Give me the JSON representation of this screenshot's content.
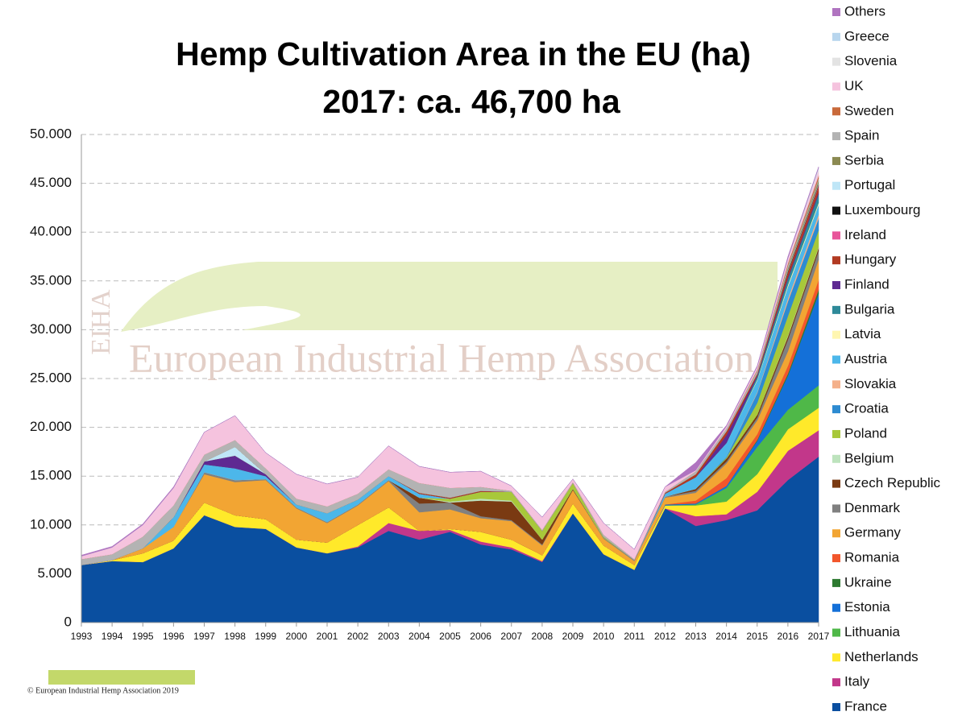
{
  "chart_data": {
    "type": "stacked-area",
    "title": "Hemp Cultivation Area in the EU (ha)",
    "subtitle": "2017: ca. 46,700 ha",
    "watermark": {
      "logo": "EIHA",
      "text": "European Industrial Hemp Association"
    },
    "footer": "© European Industrial Hemp Association 2019",
    "categories": [
      "1993",
      "1994",
      "1995",
      "1996",
      "1997",
      "1998",
      "1999",
      "2000",
      "2001",
      "2002",
      "2003",
      "2004",
      "2005",
      "2006",
      "2007",
      "2008",
      "2009",
      "2010",
      "2011",
      "2012",
      "2013",
      "2014",
      "2015",
      "2016",
      "2017"
    ],
    "ylim": [
      0,
      50000
    ],
    "yticks": [
      0,
      {
        "value": 5000,
        "label": "5.000"
      },
      {
        "value": 10000,
        "label": "10.000"
      },
      {
        "value": 15000,
        "label": "15.000"
      },
      {
        "value": 20000,
        "label": "20.000"
      },
      {
        "value": 25000,
        "label": "25.000"
      },
      {
        "value": 30000,
        "label": "30.000"
      },
      {
        "value": 35000,
        "label": "35.000"
      },
      {
        "value": 40000,
        "label": "40.000"
      },
      {
        "value": 45000,
        "label": "45.000"
      },
      {
        "value": 50000,
        "label": "50.000"
      }
    ],
    "grid": true,
    "legend": "right",
    "series": [
      {
        "name": "France",
        "color": "#0a4fa0",
        "values": [
          5900,
          6300,
          6200,
          7600,
          11000,
          9800,
          9600,
          7700,
          7100,
          7700,
          9400,
          8500,
          9300,
          8000,
          7500,
          6200,
          11200,
          7000,
          5400,
          11700,
          9900,
          10500,
          11500,
          14600,
          17000
        ]
      },
      {
        "name": "Italy",
        "color": "#c2378a",
        "values": [
          0,
          0,
          0,
          0,
          0,
          0,
          0,
          0,
          0,
          100,
          800,
          900,
          200,
          300,
          200,
          100,
          0,
          0,
          0,
          0,
          1000,
          600,
          1900,
          3000,
          2700
        ]
      },
      {
        "name": "Netherlands",
        "color": "#ffe92a",
        "values": [
          0,
          100,
          900,
          800,
          1300,
          1200,
          1000,
          800,
          1100,
          2200,
          1600,
          0,
          100,
          1000,
          800,
          600,
          1000,
          900,
          500,
          300,
          1100,
          1300,
          1800,
          2200,
          2300
        ]
      },
      {
        "name": "Lithuania",
        "color": "#4fb848",
        "values": [
          0,
          0,
          0,
          0,
          0,
          0,
          0,
          0,
          0,
          0,
          0,
          0,
          0,
          0,
          0,
          0,
          0,
          0,
          0,
          0,
          100,
          1400,
          2800,
          2000,
          2300
        ]
      },
      {
        "name": "Estonia",
        "color": "#1470d8",
        "values": [
          0,
          0,
          0,
          0,
          0,
          0,
          0,
          0,
          0,
          0,
          0,
          0,
          0,
          0,
          0,
          0,
          0,
          0,
          0,
          100,
          100,
          200,
          600,
          3500,
          9400
        ]
      },
      {
        "name": "Ukraine",
        "color": "#2d7a30",
        "values": [
          0,
          0,
          0,
          0,
          0,
          0,
          0,
          0,
          0,
          0,
          0,
          0,
          0,
          0,
          0,
          0,
          0,
          0,
          0,
          0,
          0,
          0,
          100,
          200,
          400
        ]
      },
      {
        "name": "Romania",
        "color": "#f2562b",
        "values": [
          0,
          0,
          0,
          0,
          0,
          0,
          0,
          0,
          0,
          0,
          0,
          0,
          0,
          0,
          0,
          0,
          0,
          0,
          0,
          0,
          300,
          800,
          600,
          800,
          1000
        ]
      },
      {
        "name": "Germany",
        "color": "#f2a533",
        "values": [
          0,
          0,
          500,
          1400,
          2900,
          3400,
          4000,
          3200,
          2000,
          2000,
          2700,
          1900,
          2000,
          1400,
          1900,
          1000,
          1400,
          700,
          400,
          700,
          800,
          1500,
          1400,
          1500,
          2100
        ]
      },
      {
        "name": "Denmark",
        "color": "#808080",
        "values": [
          0,
          0,
          0,
          0,
          200,
          200,
          100,
          100,
          100,
          100,
          100,
          900,
          700,
          200,
          100,
          100,
          0,
          100,
          100,
          100,
          200,
          200,
          300,
          1200,
          900
        ]
      },
      {
        "name": "Czech Republic",
        "color": "#7a3a12",
        "values": [
          0,
          0,
          0,
          0,
          0,
          0,
          0,
          0,
          0,
          0,
          0,
          600,
          0,
          1600,
          1900,
          500,
          100,
          0,
          0,
          0,
          200,
          300,
          300,
          300,
          300
        ]
      },
      {
        "name": "Belgium",
        "color": "#bde3bd",
        "values": [
          0,
          0,
          0,
          0,
          0,
          0,
          0,
          0,
          0,
          0,
          0,
          0,
          100,
          200,
          100,
          0,
          0,
          0,
          0,
          0,
          0,
          0,
          0,
          100,
          100
        ]
      },
      {
        "name": "Poland",
        "color": "#a8c83a",
        "values": [
          0,
          0,
          0,
          0,
          0,
          0,
          0,
          0,
          0,
          0,
          0,
          0,
          300,
          700,
          900,
          900,
          600,
          100,
          0,
          0,
          0,
          100,
          1200,
          2000,
          1700
        ]
      },
      {
        "name": "Croatia",
        "color": "#2d8bd1",
        "values": [
          0,
          0,
          0,
          0,
          0,
          0,
          0,
          0,
          0,
          0,
          0,
          0,
          0,
          0,
          0,
          0,
          0,
          0,
          0,
          0,
          0,
          100,
          1000,
          1500,
          1200
        ]
      },
      {
        "name": "Slovakia",
        "color": "#f4b08a",
        "values": [
          0,
          0,
          0,
          0,
          0,
          0,
          0,
          0,
          0,
          0,
          0,
          0,
          0,
          0,
          0,
          0,
          0,
          0,
          0,
          0,
          0,
          0,
          100,
          300,
          400
        ]
      },
      {
        "name": "Austria",
        "color": "#4cb7ea",
        "values": [
          0,
          0,
          0,
          1000,
          800,
          1200,
          300,
          300,
          900,
          500,
          400,
          400,
          0,
          0,
          0,
          0,
          0,
          0,
          0,
          300,
          1200,
          1400,
          1200,
          1200,
          1000
        ]
      },
      {
        "name": "Latvia",
        "color": "#fff6b0",
        "values": [
          0,
          0,
          0,
          0,
          0,
          0,
          0,
          0,
          0,
          0,
          0,
          0,
          0,
          0,
          0,
          0,
          0,
          0,
          0,
          0,
          0,
          0,
          100,
          200,
          200
        ]
      },
      {
        "name": "Bulgaria",
        "color": "#2e8a99",
        "values": [
          0,
          0,
          0,
          0,
          0,
          0,
          0,
          0,
          0,
          0,
          0,
          0,
          0,
          0,
          0,
          0,
          0,
          0,
          0,
          0,
          0,
          0,
          300,
          600,
          900
        ]
      },
      {
        "name": "Finland",
        "color": "#5f2a92",
        "values": [
          0,
          0,
          0,
          0,
          300,
          1300,
          200,
          0,
          0,
          0,
          0,
          0,
          0,
          0,
          0,
          0,
          0,
          0,
          0,
          0,
          0,
          800,
          100,
          200,
          200
        ]
      },
      {
        "name": "Hungary",
        "color": "#b23a22",
        "values": [
          0,
          0,
          0,
          0,
          0,
          0,
          0,
          0,
          0,
          0,
          0,
          100,
          100,
          100,
          0,
          0,
          0,
          0,
          0,
          100,
          300,
          400,
          200,
          500,
          600
        ]
      },
      {
        "name": "Ireland",
        "color": "#e8559a",
        "values": [
          0,
          0,
          0,
          0,
          0,
          0,
          0,
          0,
          0,
          0,
          0,
          0,
          0,
          0,
          0,
          0,
          0,
          0,
          0,
          0,
          0,
          0,
          0,
          0,
          100
        ]
      },
      {
        "name": "Luxembourg",
        "color": "#111111",
        "values": [
          0,
          0,
          0,
          0,
          0,
          0,
          0,
          0,
          0,
          0,
          0,
          0,
          0,
          0,
          0,
          0,
          0,
          0,
          0,
          0,
          0,
          0,
          0,
          100,
          100
        ]
      },
      {
        "name": "Portugal",
        "color": "#bfe6f7",
        "values": [
          0,
          0,
          0,
          0,
          0,
          900,
          0,
          0,
          0,
          0,
          0,
          0,
          0,
          0,
          0,
          0,
          0,
          0,
          0,
          0,
          0,
          0,
          0,
          100,
          100
        ]
      },
      {
        "name": "Serbia",
        "color": "#8b8a52",
        "values": [
          0,
          0,
          0,
          0,
          0,
          0,
          0,
          0,
          0,
          0,
          0,
          0,
          0,
          0,
          0,
          0,
          0,
          0,
          0,
          0,
          0,
          0,
          0,
          200,
          300
        ]
      },
      {
        "name": "Spain",
        "color": "#b3b3b3",
        "values": [
          600,
          600,
          1200,
          1200,
          700,
          700,
          600,
          600,
          700,
          600,
          700,
          1000,
          1000,
          400,
          100,
          100,
          100,
          200,
          100,
          100,
          300,
          300,
          300,
          300,
          200
        ]
      },
      {
        "name": "Sweden",
        "color": "#c96a3a",
        "values": [
          0,
          0,
          0,
          0,
          0,
          0,
          0,
          0,
          0,
          0,
          0,
          0,
          0,
          0,
          0,
          0,
          0,
          0,
          0,
          0,
          0,
          0,
          100,
          200,
          300
        ]
      },
      {
        "name": "UK",
        "color": "#f5c3de",
        "values": [
          300,
          700,
          1200,
          1800,
          2300,
          2500,
          1600,
          2500,
          2300,
          1700,
          2400,
          1700,
          1600,
          1600,
          500,
          1300,
          300,
          1200,
          1000,
          500,
          100,
          200,
          300,
          400,
          500
        ]
      },
      {
        "name": "Slovenia",
        "color": "#e3e3e3",
        "values": [
          0,
          0,
          0,
          0,
          0,
          0,
          0,
          0,
          0,
          0,
          0,
          0,
          0,
          0,
          0,
          0,
          0,
          0,
          0,
          0,
          0,
          0,
          0,
          100,
          200
        ]
      },
      {
        "name": "Greece",
        "color": "#b8d6ee",
        "values": [
          0,
          0,
          0,
          0,
          0,
          0,
          0,
          0,
          0,
          0,
          0,
          0,
          0,
          0,
          0,
          0,
          0,
          0,
          0,
          0,
          0,
          0,
          0,
          0,
          100
        ]
      },
      {
        "name": "Others",
        "color": "#b074c0",
        "values": [
          100,
          100,
          100,
          100,
          0,
          0,
          0,
          0,
          0,
          0,
          0,
          0,
          0,
          0,
          0,
          0,
          0,
          0,
          0,
          0,
          800,
          100,
          100,
          200,
          100
        ]
      }
    ]
  }
}
